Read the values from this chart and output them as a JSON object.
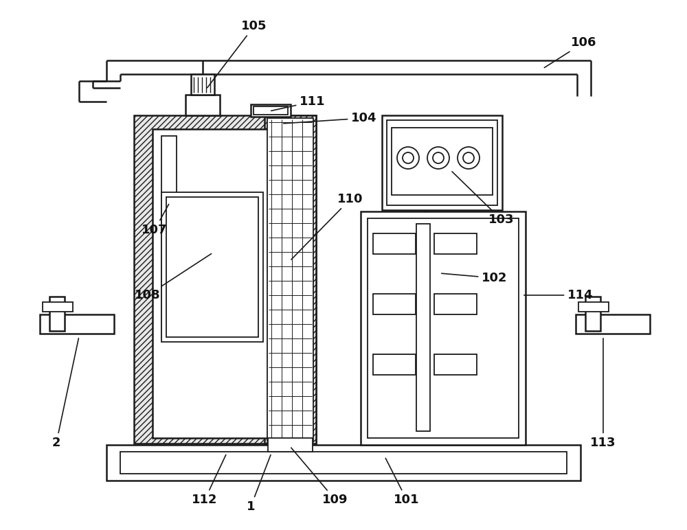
{
  "figsize": [
    10.0,
    7.72
  ],
  "dpi": 100,
  "lc": "#1a1a1a",
  "lw_main": 1.8,
  "lw_inner": 1.3,
  "label_fs": 13
}
